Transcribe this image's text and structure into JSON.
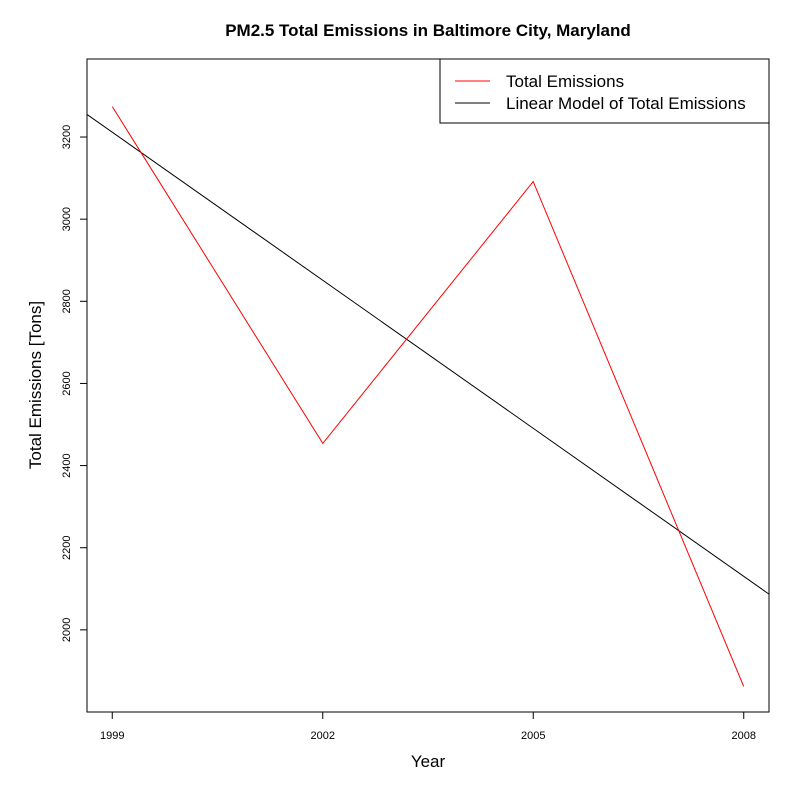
{
  "chart_data": {
    "type": "line",
    "title": "PM2.5 Total Emissions in Baltimore City, Maryland",
    "xlabel": "Year",
    "ylabel": "Total Emissions [Tons]",
    "x": [
      1999,
      2002,
      2005,
      2008
    ],
    "xticks": [
      "1999",
      "2002",
      "2005",
      "2008"
    ],
    "yticks": [
      "2000",
      "2200",
      "2400",
      "2600",
      "2800",
      "3000",
      "3200"
    ],
    "xlim": [
      1998.64,
      2008.36
    ],
    "ylim": [
      1800,
      3390
    ],
    "series": [
      {
        "name": "Total Emissions",
        "color": "#ff0000",
        "kind": "data",
        "values": [
          3274.2,
          2453.9,
          3091.4,
          1862.3
        ]
      },
      {
        "name": "Linear Model of Total Emissions",
        "color": "#000000",
        "kind": "fit",
        "endpoints": [
          [
            1998.64,
            3255
          ],
          [
            2008.36,
            2087
          ]
        ]
      }
    ],
    "legend_position": "top-right",
    "grid": false
  }
}
